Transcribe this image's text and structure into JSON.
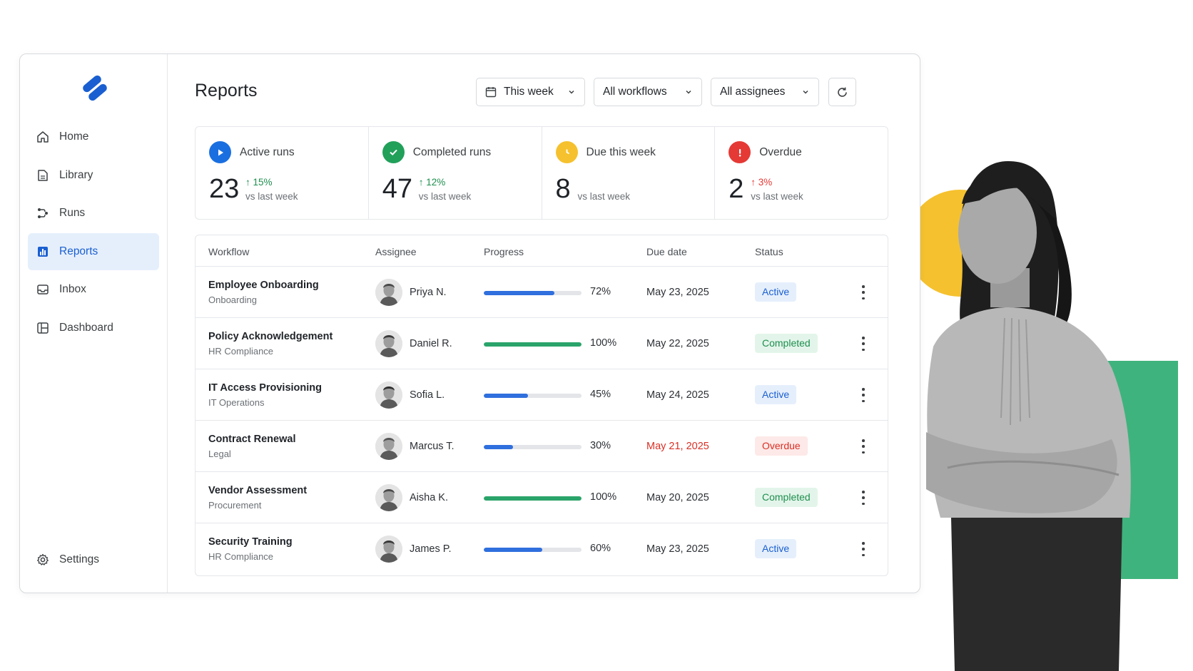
{
  "brand": {
    "accent": "#1a5fd1"
  },
  "sidebar": {
    "items": [
      {
        "label": "Home",
        "icon": "home-icon"
      },
      {
        "label": "Library",
        "icon": "library-icon"
      },
      {
        "label": "Runs",
        "icon": "runs-icon"
      },
      {
        "label": "Reports",
        "icon": "reports-icon",
        "active": true
      },
      {
        "label": "Inbox",
        "icon": "inbox-icon"
      },
      {
        "label": "Dashboard",
        "icon": "dashboard-icon"
      }
    ],
    "settings_label": "Settings"
  },
  "header": {
    "title": "Reports",
    "filters": {
      "period": "This week",
      "workflows": "All workflows",
      "assignees": "All assignees"
    }
  },
  "stats": [
    {
      "label": "Active runs",
      "value": "23",
      "change": "↑ 15%",
      "sub": "vs last week",
      "icon": "play-icon",
      "color": "#1a6fe0",
      "change_color": "#1e8e4e"
    },
    {
      "label": "Completed runs",
      "value": "47",
      "change": "↑ 12%",
      "sub": "vs last week",
      "icon": "check-icon",
      "color": "#21a05a",
      "change_color": "#1e8e4e"
    },
    {
      "label": "Due this week",
      "value": "8",
      "change": "",
      "sub": "vs last week",
      "icon": "clock-icon",
      "color": "#f5c12e",
      "change_color": "#1e8e4e"
    },
    {
      "label": "Overdue",
      "value": "2",
      "change": "↑ 3%",
      "sub": "vs last week",
      "icon": "alert-icon",
      "color": "#e53935",
      "change_color": "#e53935"
    }
  ],
  "table": {
    "columns": [
      "Workflow",
      "Assignee",
      "Progress",
      "Due date",
      "Status"
    ],
    "rows": [
      {
        "workflow": "Employee Onboarding",
        "category": "Onboarding",
        "assignee": "Priya N.",
        "progress": 72,
        "progress_label": "72%",
        "due": "May 23, 2025",
        "status": "Active",
        "overdue": false
      },
      {
        "workflow": "Policy Acknowledgement",
        "category": "HR Compliance",
        "assignee": "Daniel R.",
        "progress": 100,
        "progress_label": "100%",
        "due": "May 22, 2025",
        "status": "Completed",
        "overdue": false
      },
      {
        "workflow": "IT Access Provisioning",
        "category": "IT Operations",
        "assignee": "Sofia L.",
        "progress": 45,
        "progress_label": "45%",
        "due": "May 24, 2025",
        "status": "Active",
        "overdue": false
      },
      {
        "workflow": "Contract Renewal",
        "category": "Legal",
        "assignee": "Marcus T.",
        "progress": 30,
        "progress_label": "30%",
        "due": "May 21, 2025",
        "status": "Overdue",
        "overdue": true
      },
      {
        "workflow": "Vendor Assessment",
        "category": "Procurement",
        "assignee": "Aisha K.",
        "progress": 100,
        "progress_label": "100%",
        "due": "May 20, 2025",
        "status": "Completed",
        "overdue": false
      },
      {
        "workflow": "Security Training",
        "category": "HR Compliance",
        "assignee": "James P.",
        "progress": 60,
        "progress_label": "60%",
        "due": "May 23, 2025",
        "status": "Active",
        "overdue": false
      }
    ]
  },
  "status_styles": {
    "Active": {
      "bg": "#e5effc",
      "fg": "#1a5fd1",
      "bar": "#2f6fde"
    },
    "Completed": {
      "bg": "#e3f5ea",
      "fg": "#1e8e4e",
      "bar": "#2aa46a"
    },
    "Overdue": {
      "bg": "#fde9e8",
      "fg": "#d93025",
      "bar": "#2f6fde"
    }
  },
  "overdue_date_color": "#d93025",
  "decor": {
    "circle_color": "#f5c12e",
    "block_color": "#3fb37d"
  }
}
